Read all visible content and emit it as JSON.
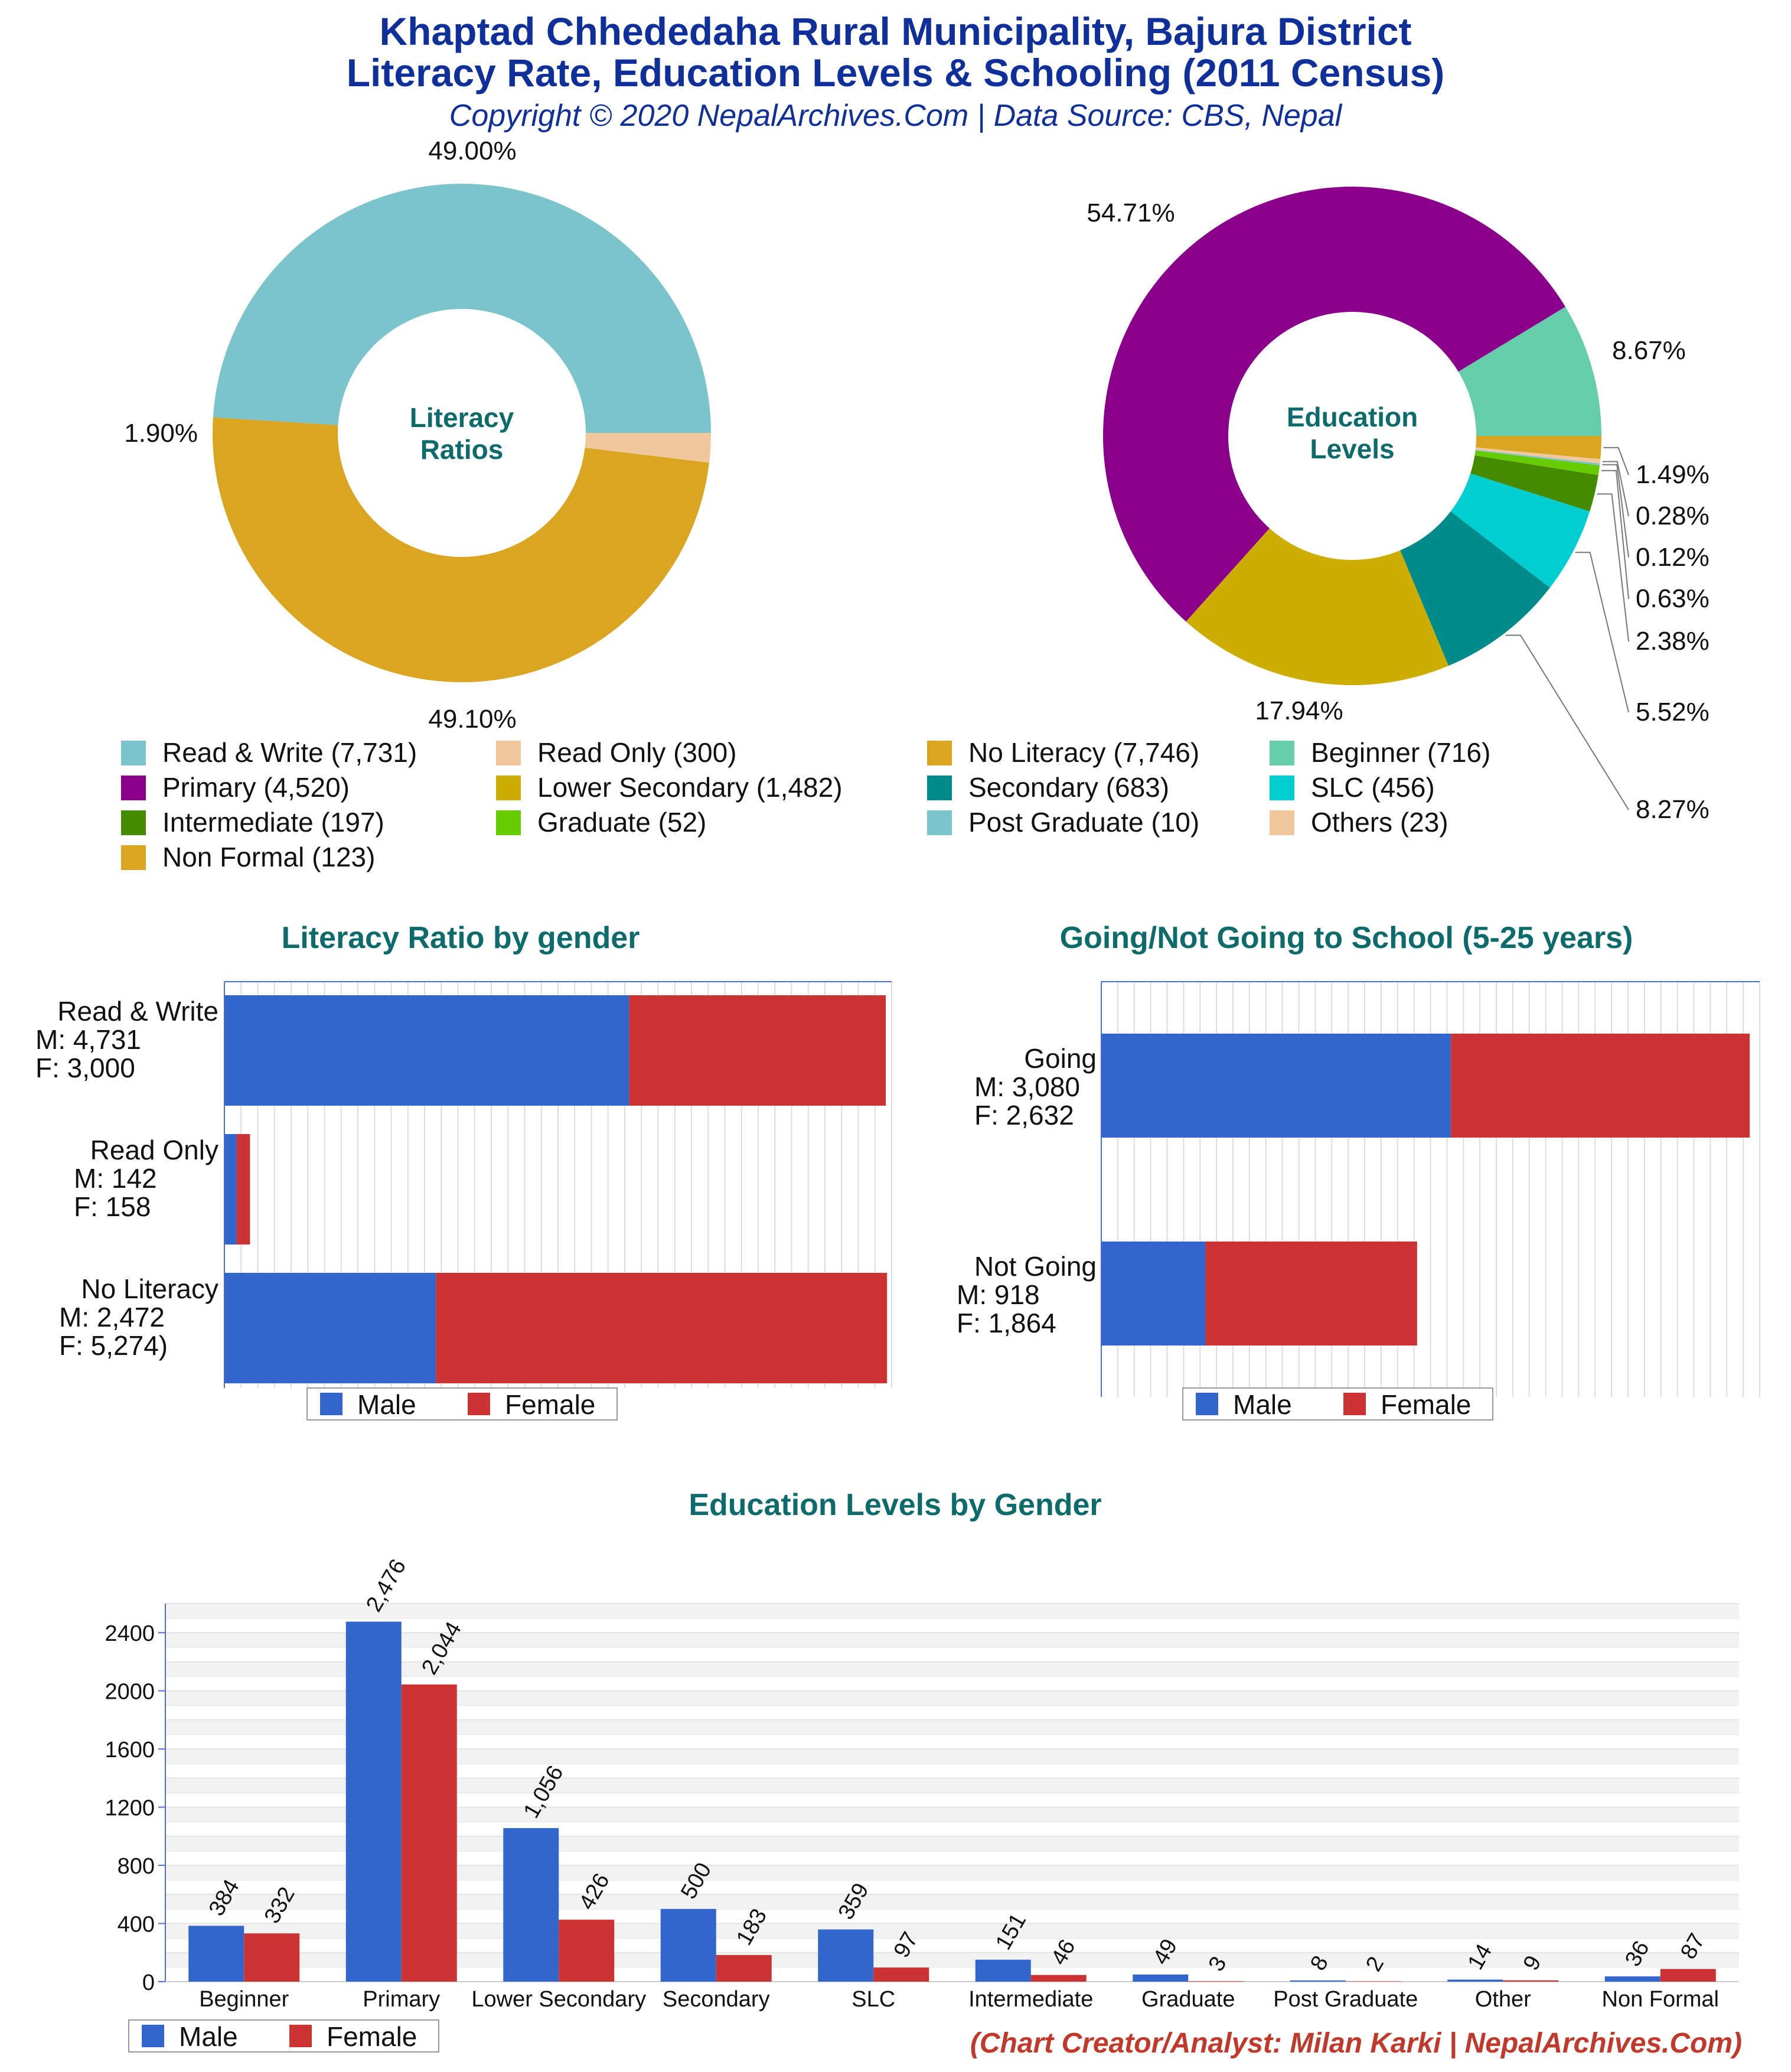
{
  "header": {
    "title_line1": "Khaptad Chhededaha Rural Municipality, Bajura District",
    "title_line2": "Literacy Rate, Education Levels & Schooling (2011 Census)",
    "subtitle": "Copyright © 2020 NepalArchives.Com | Data Source: CBS, Nepal"
  },
  "colors": {
    "male": "#3366cc",
    "female": "#cc3333",
    "title_teal": "#0e6b6b",
    "title_blue": "#0f2f9a",
    "credit_red": "#c0392b"
  },
  "chart_data": [
    {
      "type": "pie",
      "variant": "donut",
      "center_label": [
        "Literacy",
        "Ratios"
      ],
      "slices": [
        {
          "label": "Read & Write",
          "value": 7731,
          "percent_label": "49.00%",
          "color": "#7cc4cc"
        },
        {
          "label": "Read Only",
          "value": 300,
          "percent_label": "1.90%",
          "color": "#f0c89b"
        },
        {
          "label": "No Literacy",
          "value": 7746,
          "percent_label": "49.10%",
          "color": "#daa520"
        }
      ]
    },
    {
      "type": "pie",
      "variant": "donut",
      "center_label": [
        "Education",
        "Levels"
      ],
      "slices": [
        {
          "label": "Beginner",
          "value": 716,
          "percent_label": "8.67%",
          "color": "#66cdaa"
        },
        {
          "label": "Non Formal",
          "value": 123,
          "percent_label": "1.49%",
          "color": "#daa520"
        },
        {
          "label": "Others",
          "value": 23,
          "percent_label": "0.28%",
          "color": "#f0c89b"
        },
        {
          "label": "Post Graduate",
          "value": 10,
          "percent_label": "0.12%",
          "color": "#7cc4cc"
        },
        {
          "label": "Graduate",
          "value": 52,
          "percent_label": "0.63%",
          "color": "#66cc00"
        },
        {
          "label": "Intermediate",
          "value": 197,
          "percent_label": "2.38%",
          "color": "#458b00"
        },
        {
          "label": "SLC",
          "value": 456,
          "percent_label": "5.52%",
          "color": "#00ced1"
        },
        {
          "label": "Secondary",
          "value": 683,
          "percent_label": "8.27%",
          "color": "#008b8b"
        },
        {
          "label": "Lower Secondary",
          "value": 1482,
          "percent_label": "17.94%",
          "color": "#ccad00"
        },
        {
          "label": "Primary",
          "value": 4520,
          "percent_label": "54.71%",
          "color": "#8b008b"
        }
      ]
    },
    {
      "type": "bar",
      "orientation": "horizontal",
      "stacked": true,
      "title": "Literacy Ratio by gender",
      "categories": [
        "Read & Write",
        "Read Only",
        "No Literacy"
      ],
      "category_labels": [
        [
          "Read & Write",
          "M: 4,731",
          "F: 3,000"
        ],
        [
          "Read Only",
          "M: 142",
          "F: 158"
        ],
        [
          "No Literacy",
          "M: 2,472",
          "F: 5,274)"
        ]
      ],
      "series": [
        {
          "name": "Male",
          "values": [
            4731,
            142,
            2472
          ]
        },
        {
          "name": "Female",
          "values": [
            3000,
            158,
            5274
          ]
        }
      ],
      "xlim": [
        0,
        7800
      ],
      "grid": true,
      "legend": "bottom"
    },
    {
      "type": "bar",
      "orientation": "horizontal",
      "stacked": true,
      "title": "Going/Not Going to School (5-25 years)",
      "categories": [
        "Going",
        "Not Going"
      ],
      "category_labels": [
        [
          "Going",
          "M: 3,080",
          "F: 2,632"
        ],
        [
          "Not Going",
          "M: 918",
          "F: 1,864"
        ]
      ],
      "series": [
        {
          "name": "Male",
          "values": [
            3080,
            918
          ]
        },
        {
          "name": "Female",
          "values": [
            2632,
            1864
          ]
        }
      ],
      "xlim": [
        0,
        5800
      ],
      "grid": true,
      "legend": "bottom"
    },
    {
      "type": "bar",
      "orientation": "vertical",
      "title": "Education Levels by Gender",
      "categories": [
        "Beginner",
        "Primary",
        "Lower Secondary",
        "Secondary",
        "SLC",
        "Intermediate",
        "Graduate",
        "Post Graduate",
        "Other",
        "Non Formal"
      ],
      "series": [
        {
          "name": "Male",
          "values": [
            384,
            2476,
            1056,
            500,
            359,
            151,
            49,
            8,
            14,
            36
          ],
          "labels": [
            "384",
            "2,476",
            "1,056",
            "500",
            "359",
            "151",
            "49",
            "8",
            "14",
            "36"
          ]
        },
        {
          "name": "Female",
          "values": [
            332,
            2044,
            426,
            183,
            97,
            46,
            3,
            2,
            9,
            87
          ],
          "labels": [
            "332",
            "2,044",
            "426",
            "183",
            "97",
            "46",
            "3",
            "2",
            "9",
            "87"
          ]
        }
      ],
      "ylim": [
        0,
        2600
      ],
      "yticks": [
        0,
        400,
        800,
        1200,
        1600,
        2000,
        2400
      ],
      "grid": true,
      "legend": "bottom-left"
    }
  ],
  "legend_items": [
    {
      "label": "Read & Write (7,731)",
      "color": "#7cc4cc"
    },
    {
      "label": "Read Only (300)",
      "color": "#f0c89b"
    },
    {
      "label": "No Literacy (7,746)",
      "color": "#daa520"
    },
    {
      "label": "Beginner (716)",
      "color": "#66cdaa"
    },
    {
      "label": "Primary (4,520)",
      "color": "#8b008b"
    },
    {
      "label": "Lower Secondary (1,482)",
      "color": "#ccad00"
    },
    {
      "label": "Secondary (683)",
      "color": "#008b8b"
    },
    {
      "label": "SLC (456)",
      "color": "#00ced1"
    },
    {
      "label": "Intermediate (197)",
      "color": "#458b00"
    },
    {
      "label": "Graduate (52)",
      "color": "#66cc00"
    },
    {
      "label": "Post Graduate (10)",
      "color": "#7cc4cc"
    },
    {
      "label": "Others (23)",
      "color": "#f0c89b"
    },
    {
      "label": "Non Formal (123)",
      "color": "#daa520"
    }
  ],
  "footer": {
    "credit": "(Chart Creator/Analyst: Milan Karki | NepalArchives.Com)"
  }
}
